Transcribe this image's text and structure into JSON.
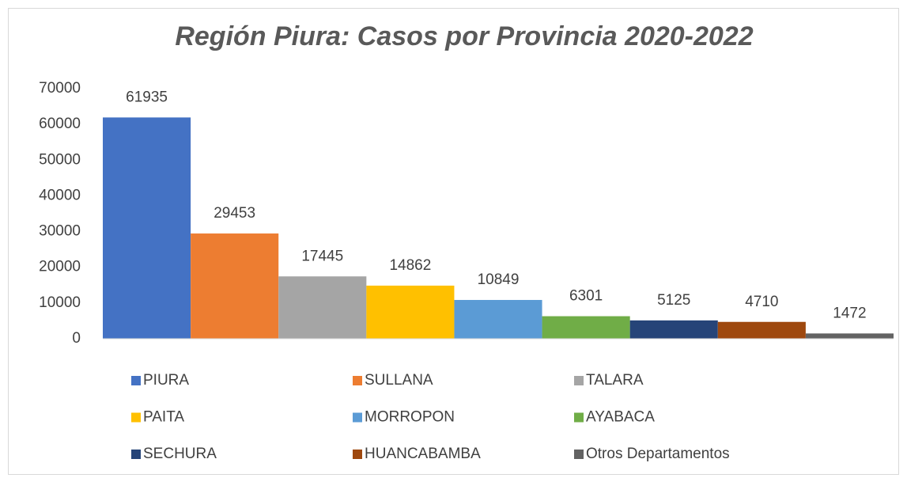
{
  "chart_data": {
    "type": "bar",
    "title": "Región Piura: Casos por Provincia 2020-2022",
    "categories": [
      null
    ],
    "series": [
      {
        "name": "PIURA",
        "color": "#4472c4",
        "values": [
          61935
        ]
      },
      {
        "name": "SULLANA",
        "color": "#ed7d31",
        "values": [
          29453
        ]
      },
      {
        "name": "TALARA",
        "color": "#a5a5a5",
        "values": [
          17445
        ]
      },
      {
        "name": "PAITA",
        "color": "#ffc000",
        "values": [
          14862
        ]
      },
      {
        "name": "MORROPON",
        "color": "#5b9bd5",
        "values": [
          10849
        ]
      },
      {
        "name": "AYABACA",
        "color": "#70ad47",
        "values": [
          6301
        ]
      },
      {
        "name": "SECHURA",
        "color": "#264478",
        "values": [
          5125
        ]
      },
      {
        "name": "HUANCABAMBA",
        "color": "#9e480e",
        "values": [
          4710
        ]
      },
      {
        "name": "Otros Departamentos",
        "color": "#636363",
        "values": [
          1472
        ]
      }
    ],
    "ylim": [
      0,
      70000
    ],
    "yticks": [
      0,
      10000,
      20000,
      30000,
      40000,
      50000,
      60000,
      70000
    ],
    "grid": false,
    "legend": "bottom"
  }
}
